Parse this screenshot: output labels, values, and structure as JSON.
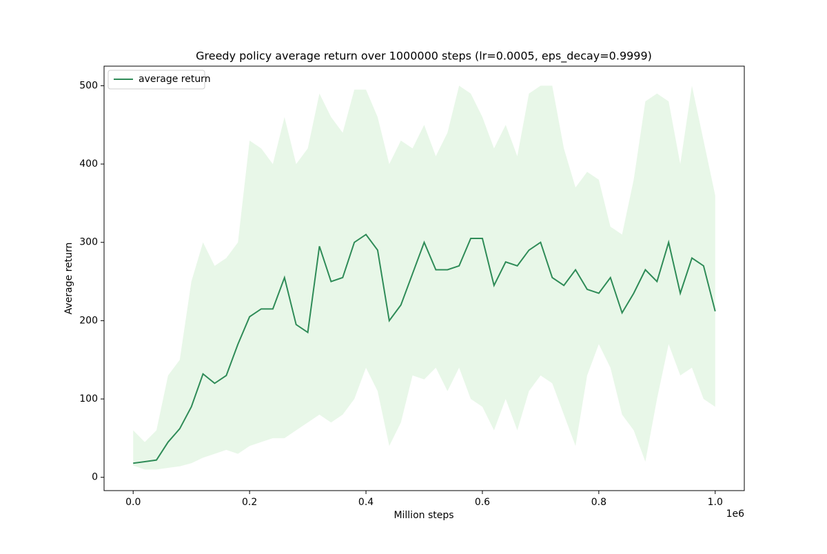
{
  "chart_data": {
    "type": "line",
    "title": "Greedy policy average return over 1000000 steps (lr=0.0005, eps_decay=0.9999)",
    "x_label": "Million steps",
    "y_label": "Average return",
    "x_offset_label": "1e6",
    "x": [
      0,
      20000,
      40000,
      60000,
      80000,
      100000,
      120000,
      140000,
      160000,
      180000,
      200000,
      220000,
      240000,
      260000,
      280000,
      300000,
      320000,
      340000,
      360000,
      380000,
      400000,
      420000,
      440000,
      460000,
      480000,
      500000,
      520000,
      540000,
      560000,
      580000,
      600000,
      620000,
      640000,
      660000,
      680000,
      700000,
      720000,
      740000,
      760000,
      780000,
      800000,
      820000,
      840000,
      860000,
      880000,
      900000,
      920000,
      940000,
      960000,
      980000,
      1000000
    ],
    "series": [
      {
        "name": "average return",
        "color": "#2e8b57",
        "values": [
          18,
          20,
          22,
          45,
          62,
          90,
          132,
          120,
          130,
          170,
          205,
          215,
          215,
          255,
          195,
          185,
          295,
          250,
          255,
          300,
          310,
          290,
          200,
          220,
          260,
          300,
          265,
          265,
          270,
          305,
          305,
          245,
          275,
          270,
          290,
          300,
          255,
          245,
          265,
          240,
          235,
          255,
          210,
          235,
          265,
          250,
          300,
          235,
          280,
          270,
          212
        ]
      }
    ],
    "band": {
      "color": "#e8f7e8",
      "lower": [
        15,
        10,
        10,
        12,
        14,
        18,
        25,
        30,
        35,
        30,
        40,
        45,
        50,
        50,
        60,
        70,
        80,
        70,
        80,
        100,
        140,
        110,
        40,
        70,
        130,
        125,
        140,
        110,
        140,
        100,
        90,
        60,
        100,
        60,
        110,
        130,
        120,
        80,
        40,
        130,
        170,
        140,
        80,
        60,
        20,
        100,
        170,
        130,
        140,
        100,
        90
      ],
      "upper": [
        60,
        45,
        60,
        130,
        150,
        250,
        300,
        270,
        280,
        300,
        430,
        420,
        400,
        460,
        400,
        420,
        490,
        460,
        440,
        495,
        495,
        460,
        400,
        430,
        420,
        450,
        410,
        440,
        500,
        490,
        460,
        420,
        450,
        410,
        490,
        500,
        500,
        420,
        370,
        390,
        380,
        320,
        310,
        380,
        480,
        490,
        480,
        400,
        500,
        430,
        360
      ]
    },
    "xlim": [
      -50000,
      1050000
    ],
    "ylim": [
      -17,
      525
    ],
    "xticks": [
      {
        "value": 0,
        "label": "0.0"
      },
      {
        "value": 200000,
        "label": "0.2"
      },
      {
        "value": 400000,
        "label": "0.4"
      },
      {
        "value": 600000,
        "label": "0.6"
      },
      {
        "value": 800000,
        "label": "0.8"
      },
      {
        "value": 1000000,
        "label": "1.0"
      }
    ],
    "yticks": [
      0,
      100,
      200,
      300,
      400,
      500
    ],
    "legend": "upper left"
  }
}
